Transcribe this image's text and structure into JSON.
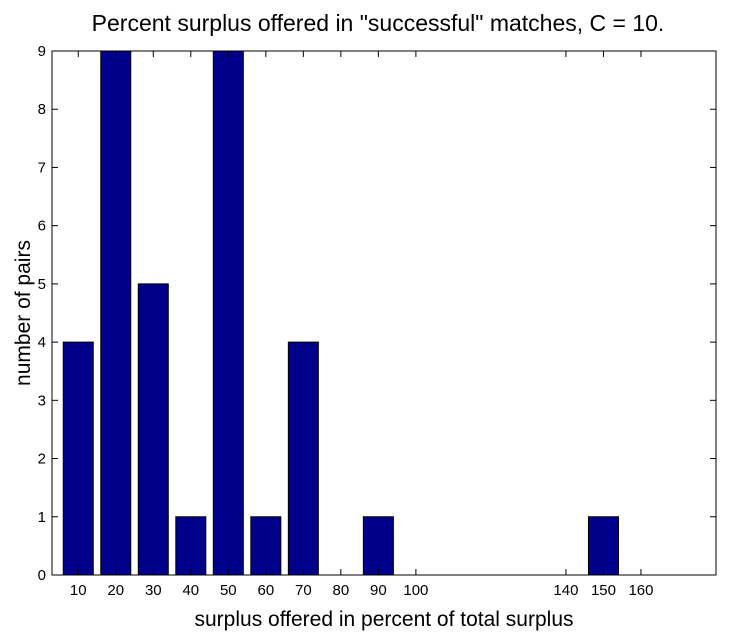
{
  "chart_data": {
    "type": "bar",
    "title": "Percent surplus offered in \"successful\" matches, C = 10.",
    "xlabel": "surplus offered in percent of total surplus",
    "ylabel": "number of pairs",
    "x": [
      10,
      20,
      30,
      40,
      50,
      60,
      70,
      80,
      90,
      100,
      140,
      150,
      160
    ],
    "values": [
      4,
      9,
      5,
      1,
      9,
      1,
      4,
      0,
      1,
      0,
      0,
      1,
      0
    ],
    "xticks": [
      "10",
      "20",
      "30",
      "40",
      "50",
      "60",
      "70",
      "80",
      "90",
      "100",
      "140",
      "150",
      "160"
    ],
    "yticks": [
      "0",
      "1",
      "2",
      "3",
      "4",
      "5",
      "6",
      "7",
      "8",
      "9"
    ],
    "xlim": [
      3,
      180
    ],
    "ylim": [
      0,
      9
    ],
    "grid": false,
    "bar_color": "#00008B"
  }
}
